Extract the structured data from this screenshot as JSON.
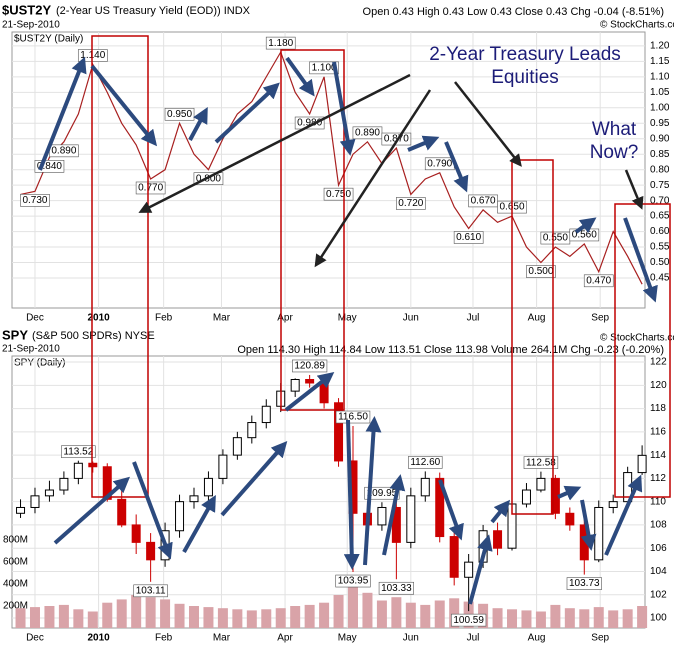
{
  "chart_data": [
    {
      "type": "line",
      "title": "$UST2Y",
      "subtitle": "(2-Year US Treasury Yield (EOD)) INDX",
      "date": "21-Sep-2010",
      "stats": "Open 0.43 High 0.43 Low 0.43 Close 0.43 Chg -0.04 (-8.51%)",
      "legend": "$UST2Y (Daily)",
      "watermark": "© StockCharts.com",
      "annotations": [
        "2-Year Treasury Leads",
        "Equities",
        "What",
        "Now?"
      ],
      "xlim": [
        -0.59,
        43.2
      ],
      "xticks": [
        {
          "value": 1,
          "label": "Dec"
        },
        {
          "value": 5.4,
          "label": "2010"
        },
        {
          "value": 9.9,
          "label": "Feb"
        },
        {
          "value": 13.9,
          "label": "Mar"
        },
        {
          "value": 18.3,
          "label": "Apr"
        },
        {
          "value": 22.6,
          "label": "May"
        },
        {
          "value": 27,
          "label": "Jun"
        },
        {
          "value": 31.3,
          "label": "Jul"
        },
        {
          "value": 35.7,
          "label": "Aug"
        },
        {
          "value": 40.1,
          "label": "Sep"
        }
      ],
      "ylim": [
        0.353,
        1.245
      ],
      "yticks": [
        0.45,
        {
          "value": 0.5,
          "label": "0.50"
        },
        0.55,
        {
          "value": 0.6,
          "label": "0.60"
        },
        0.65,
        {
          "value": 0.7,
          "label": "0.70"
        },
        0.75,
        {
          "value": 0.8,
          "label": "0.80"
        },
        0.85,
        {
          "value": 0.9,
          "label": "0.90"
        },
        0.95,
        {
          "value": 1,
          "label": "1.00"
        },
        1.05,
        {
          "value": 1.1,
          "label": "1.10"
        },
        1.15,
        {
          "value": 1.2,
          "label": "1.20"
        }
      ],
      "grid": true,
      "series": [
        {
          "name": "$UST2Y",
          "color": "#a82020",
          "values": [
            0.72,
            0.73,
            0.84,
            0.89,
            0.98,
            1.14,
            1.05,
            0.95,
            0.88,
            0.77,
            0.8,
            0.95,
            0.85,
            0.8,
            0.9,
            0.98,
            1.02,
            1.1,
            1.18,
            1.05,
            0.98,
            1.1,
            0.75,
            0.85,
            0.89,
            0.82,
            0.87,
            0.72,
            0.77,
            0.79,
            0.68,
            0.61,
            0.67,
            0.63,
            0.65,
            0.55,
            0.5,
            0.55,
            0.52,
            0.56,
            0.47,
            0.6,
            0.52,
            0.43
          ]
        }
      ],
      "point_labels": [
        {
          "at": 1,
          "value": 0.73,
          "label": "0.730"
        },
        {
          "at": 2,
          "value": 0.84,
          "label": "0.840"
        },
        {
          "at": 3,
          "value": 0.89,
          "label": "0.890"
        },
        {
          "at": 5,
          "value": 1.14,
          "label": "1.140"
        },
        {
          "at": 9,
          "value": 0.77,
          "label": "0.770"
        },
        {
          "at": 11,
          "value": 0.95,
          "label": "0.950"
        },
        {
          "at": 13,
          "value": 0.8,
          "label": "0.800"
        },
        {
          "at": 18,
          "value": 1.18,
          "label": "1.180"
        },
        {
          "at": 20,
          "value": 0.98,
          "label": "0.980"
        },
        {
          "at": 21,
          "value": 1.1,
          "label": "1.100"
        },
        {
          "at": 22,
          "value": 0.75,
          "label": "0.750"
        },
        {
          "at": 24,
          "value": 0.89,
          "label": "0.890"
        },
        {
          "at": 26,
          "value": 0.87,
          "label": "0.870"
        },
        {
          "at": 27,
          "value": 0.72,
          "label": "0.720"
        },
        {
          "at": 29,
          "value": 0.79,
          "label": "0.790"
        },
        {
          "at": 31,
          "value": 0.61,
          "label": "0.610"
        },
        {
          "at": 32,
          "value": 0.67,
          "label": "0.670"
        },
        {
          "at": 34,
          "value": 0.65,
          "label": "0.650"
        },
        {
          "at": 36,
          "value": 0.5,
          "label": "0.500"
        },
        {
          "at": 37,
          "value": 0.55,
          "label": "0.550"
        },
        {
          "at": 39,
          "value": 0.56,
          "label": "0.560"
        },
        {
          "at": 40,
          "value": 0.47,
          "label": "0.470"
        }
      ]
    },
    {
      "type": "candlestick",
      "title": "SPY",
      "subtitle": "(S&P 500 SPDRs) NYSE",
      "date": "21-Sep-2010",
      "stats": "Open 114.30 High 114.84 Low 113.51 Close 113.98 Volume 264.1M Chg -0.23 (-0.20%)",
      "legend": "SPY (Daily)",
      "watermark": "© StockCharts.com",
      "xlim": [
        -0.59,
        43.2
      ],
      "xticks": [
        {
          "value": 1,
          "label": "Dec"
        },
        {
          "value": 5.4,
          "label": "2010"
        },
        {
          "value": 9.9,
          "label": "Feb"
        },
        {
          "value": 13.9,
          "label": "Mar"
        },
        {
          "value": 18.3,
          "label": "Apr"
        },
        {
          "value": 22.6,
          "label": "May"
        },
        {
          "value": 27,
          "label": "Jun"
        },
        {
          "value": 31.3,
          "label": "Jul"
        },
        {
          "value": 35.7,
          "label": "Aug"
        },
        {
          "value": 40.1,
          "label": "Sep"
        }
      ],
      "ylim": [
        99.14,
        122.52
      ],
      "yticks": [
        100,
        102,
        104,
        106,
        108,
        110,
        112,
        114,
        116,
        118,
        120,
        122
      ],
      "grid": true,
      "up_color": "#000000",
      "down_color": "#cc0000",
      "open": [
        109.0,
        109.5,
        110.5,
        111.0,
        112.0,
        113.3,
        113.0,
        110.2,
        108.0,
        106.5,
        105.0,
        107.5,
        110.0,
        110.5,
        112.0,
        114.0,
        115.5,
        116.8,
        118.2,
        119.5,
        120.5,
        120.2,
        118.5,
        113.5,
        109.0,
        108.0,
        109.5,
        106.5,
        110.5,
        112.0,
        107.0,
        103.5,
        104.8,
        107.5,
        106.0,
        109.8,
        111.0,
        112.0,
        109.0,
        108.0,
        105.0,
        109.5,
        110.0,
        112.5
      ],
      "high": [
        110.2,
        111.2,
        111.8,
        112.6,
        113.52,
        113.45,
        113.3,
        111.0,
        108.9,
        107.3,
        108.2,
        110.6,
        111.2,
        112.6,
        114.5,
        116.0,
        117.4,
        118.8,
        120.2,
        120.6,
        120.89,
        120.6,
        118.9,
        116.5,
        110.0,
        109.95,
        110.0,
        111.2,
        112.6,
        112.5,
        107.6,
        105.5,
        108.0,
        108.2,
        110.3,
        111.6,
        112.58,
        112.3,
        109.5,
        108.5,
        110.1,
        110.6,
        113.0,
        114.84
      ],
      "low": [
        108.6,
        109.0,
        110.0,
        110.6,
        111.5,
        112.5,
        110.0,
        107.8,
        105.5,
        103.11,
        104.4,
        106.9,
        109.4,
        110.0,
        111.5,
        113.6,
        115.0,
        116.3,
        117.7,
        119.0,
        119.8,
        118.0,
        113.0,
        103.95,
        107.0,
        107.5,
        103.33,
        106.0,
        110.0,
        106.5,
        102.8,
        100.59,
        104.3,
        105.4,
        105.8,
        109.5,
        110.8,
        108.5,
        107.5,
        103.73,
        104.8,
        109.0,
        109.7,
        112.3
      ],
      "close": [
        109.5,
        110.5,
        111.0,
        112.0,
        113.3,
        113.0,
        110.2,
        108.0,
        106.5,
        105.0,
        107.5,
        110.0,
        110.5,
        112.0,
        114.0,
        115.5,
        116.8,
        118.2,
        119.5,
        120.5,
        120.2,
        118.5,
        113.5,
        109.0,
        108.0,
        109.5,
        106.5,
        110.5,
        112.0,
        107.0,
        103.5,
        104.8,
        107.5,
        106.0,
        109.8,
        111.0,
        112.0,
        109.0,
        108.0,
        105.0,
        109.5,
        110.0,
        112.5,
        113.98
      ],
      "volume": {
        "color": "#d9a3a8",
        "ylim": [
          0,
          1000
        ],
        "yticks": [
          {
            "value": 200,
            "label": "200M"
          },
          {
            "value": 400,
            "label": "400M"
          },
          {
            "value": 600,
            "label": "600M"
          },
          {
            "value": 800,
            "label": "800M"
          }
        ],
        "values": [
          180,
          190,
          200,
          210,
          170,
          150,
          230,
          260,
          300,
          280,
          260,
          220,
          200,
          190,
          180,
          170,
          160,
          170,
          180,
          200,
          210,
          230,
          300,
          380,
          320,
          250,
          280,
          230,
          210,
          250,
          270,
          240,
          220,
          180,
          170,
          160,
          150,
          210,
          180,
          170,
          190,
          160,
          170,
          200
        ]
      },
      "point_labels": [
        {
          "at": 4,
          "value": 113.52,
          "label": "113.52"
        },
        {
          "at": 9,
          "value": 103.11,
          "label": "103.11"
        },
        {
          "at": 20,
          "value": 120.89,
          "label": "120.89"
        },
        {
          "at": 23,
          "value": 116.5,
          "label": "116.50"
        },
        {
          "at": 23,
          "value": 103.95,
          "label": "103.95"
        },
        {
          "at": 25,
          "value": 109.95,
          "label": "109.95"
        },
        {
          "at": 26,
          "value": 103.33,
          "label": "103.33"
        },
        {
          "at": 28,
          "value": 112.6,
          "label": "112.60"
        },
        {
          "at": 31,
          "value": 100.59,
          "label": "100.59"
        },
        {
          "at": 36,
          "value": 112.58,
          "label": "112.58"
        },
        {
          "at": 39,
          "value": 103.73,
          "label": "103.73"
        }
      ]
    }
  ]
}
